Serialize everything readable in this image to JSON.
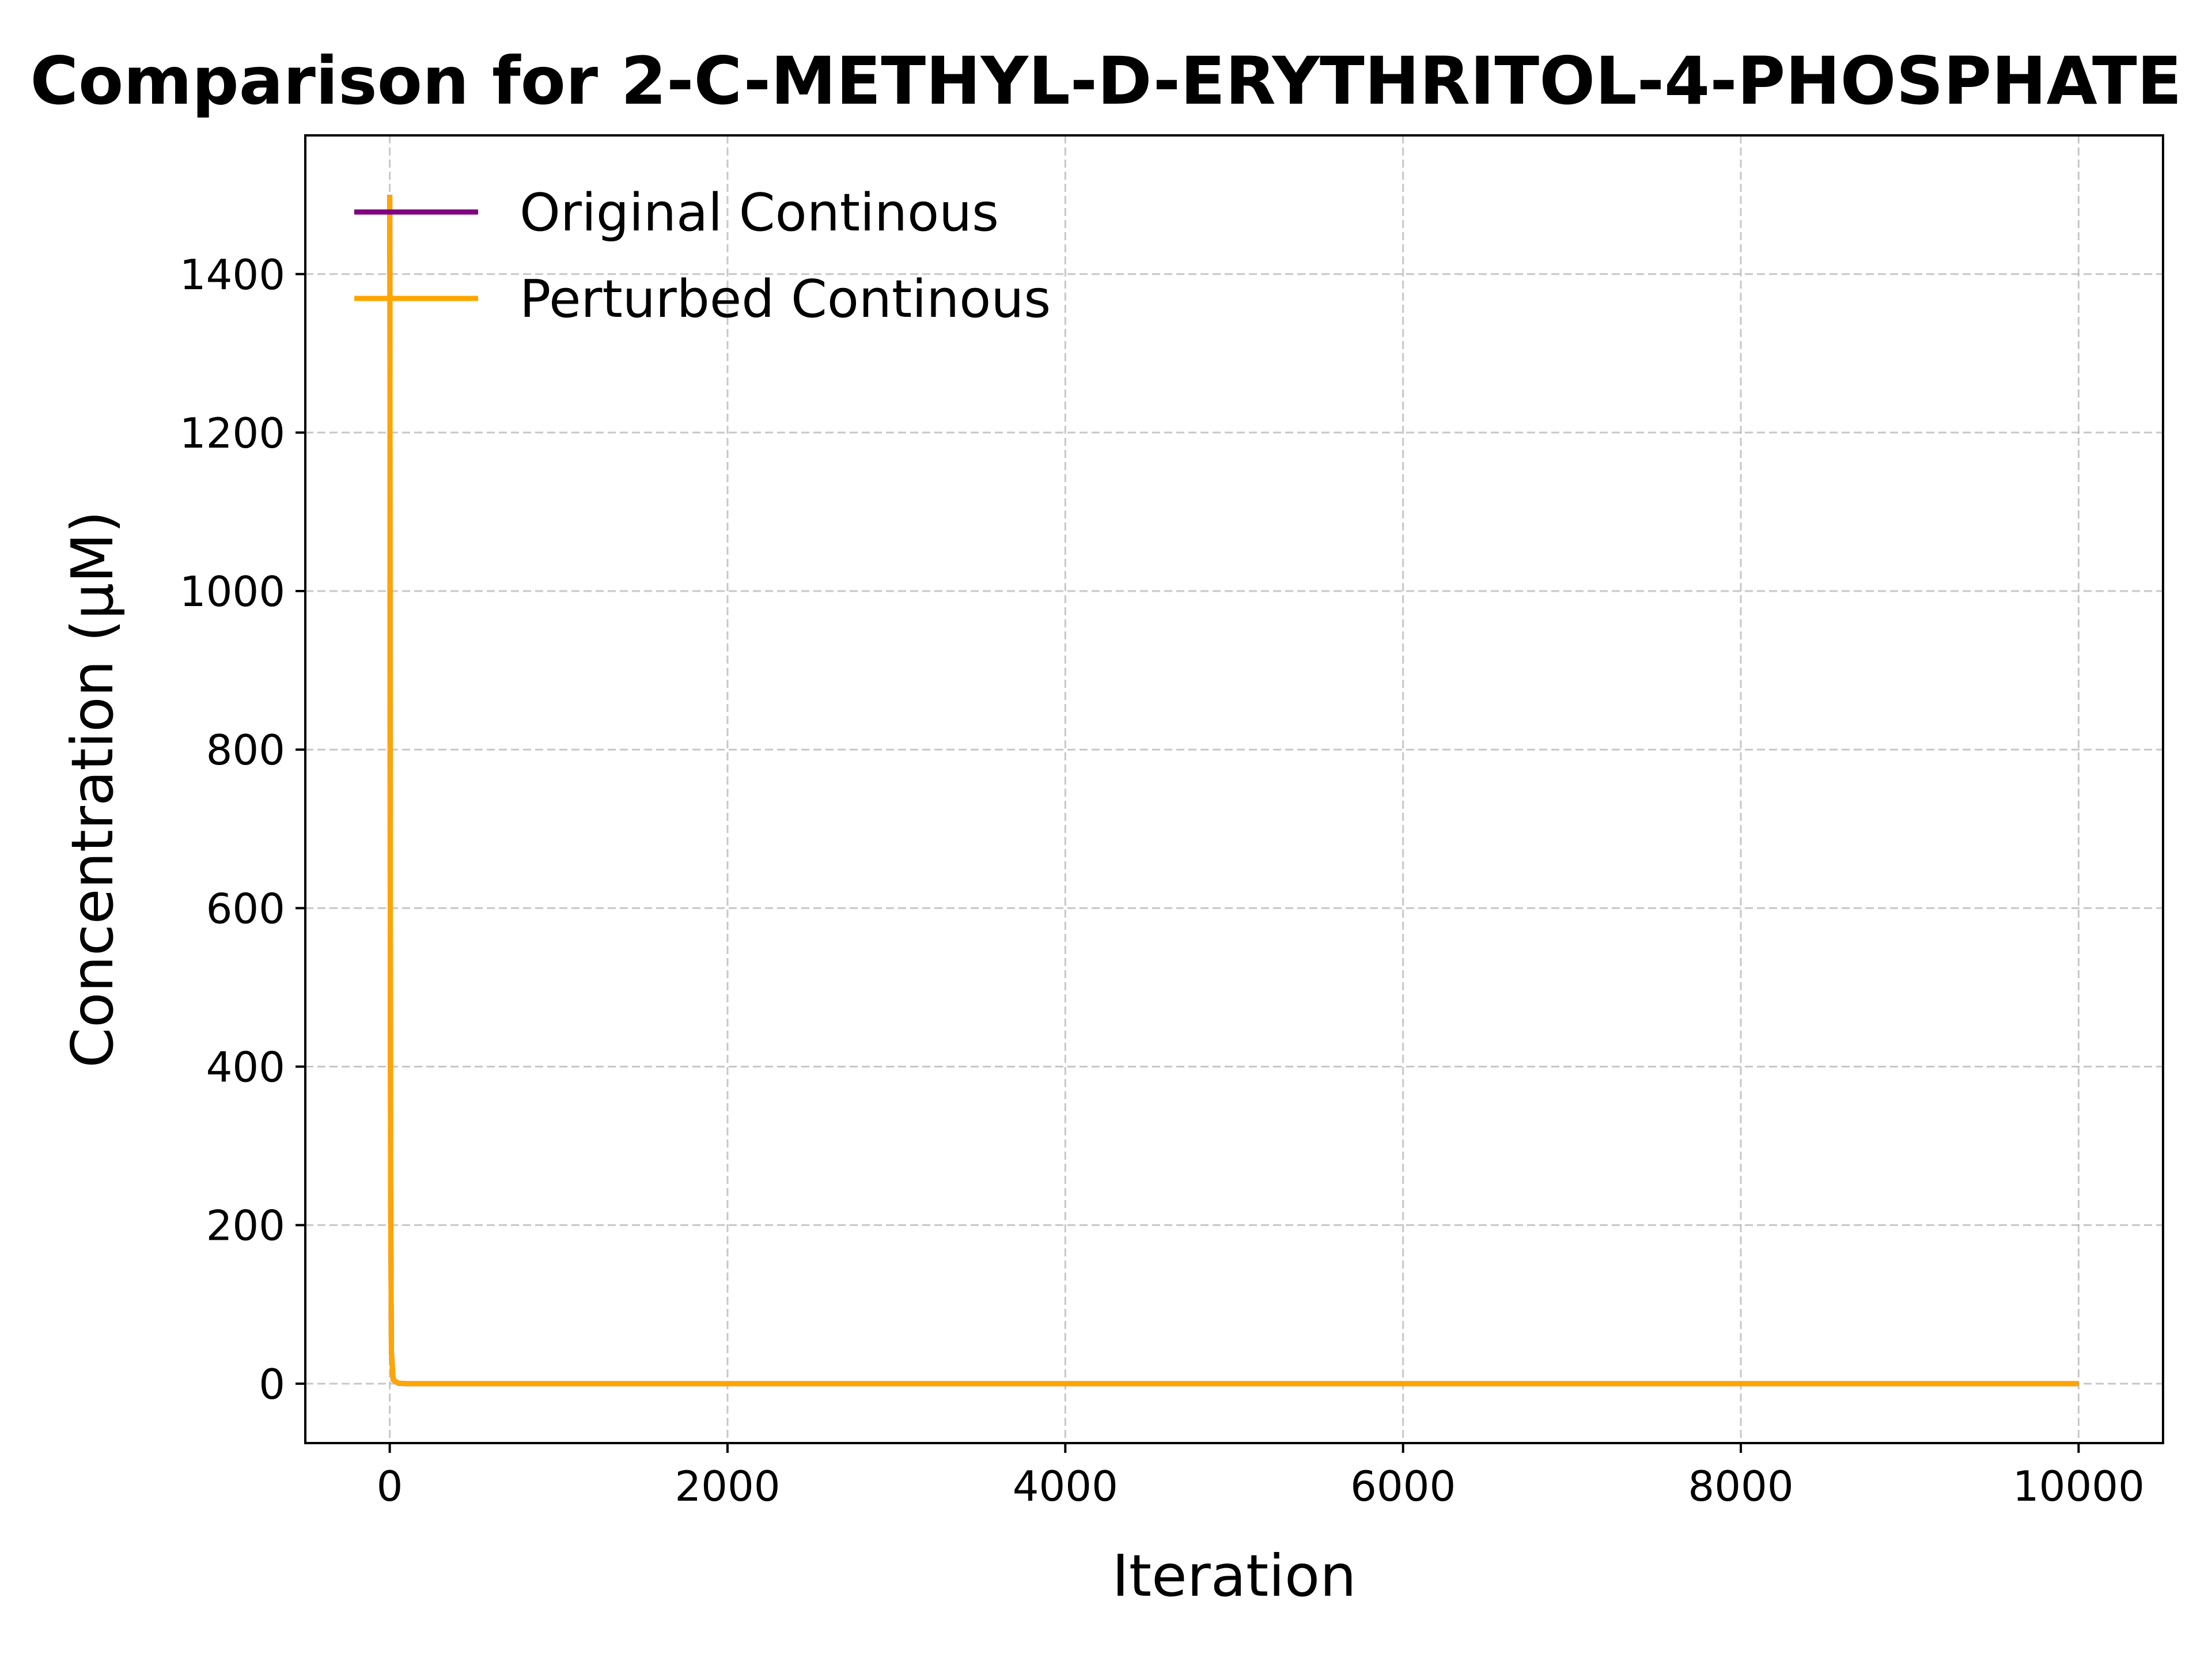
{
  "chart_data": {
    "type": "line",
    "title": "Comparison for 2-C-METHYL-D-ERYTHRITOL-4-PHOSPHATE",
    "xlabel": "Iteration",
    "ylabel": "Concentration (μM)",
    "xlim": [
      -500,
      10500
    ],
    "ylim": [
      -75,
      1575
    ],
    "xticks": [
      0,
      2000,
      4000,
      6000,
      8000,
      10000
    ],
    "yticks": [
      0,
      200,
      400,
      600,
      800,
      1000,
      1200,
      1400
    ],
    "grid": true,
    "grid_style": "dashed",
    "legend_position": "upper-left",
    "series": [
      {
        "name": "Original Continous",
        "color": "#800080",
        "x": [
          0,
          1,
          2,
          3,
          5,
          10,
          20,
          50,
          100,
          1000,
          10000
        ],
        "y": [
          1500,
          1380,
          1000,
          600,
          250,
          40,
          5,
          0.5,
          0,
          0,
          0
        ]
      },
      {
        "name": "Perturbed Continous",
        "color": "#FFA500",
        "x": [
          0,
          1,
          2,
          3,
          5,
          10,
          20,
          50,
          100,
          1000,
          10000
        ],
        "y": [
          1500,
          1380,
          1000,
          600,
          250,
          40,
          5,
          0.5,
          0,
          0,
          0
        ]
      }
    ]
  }
}
